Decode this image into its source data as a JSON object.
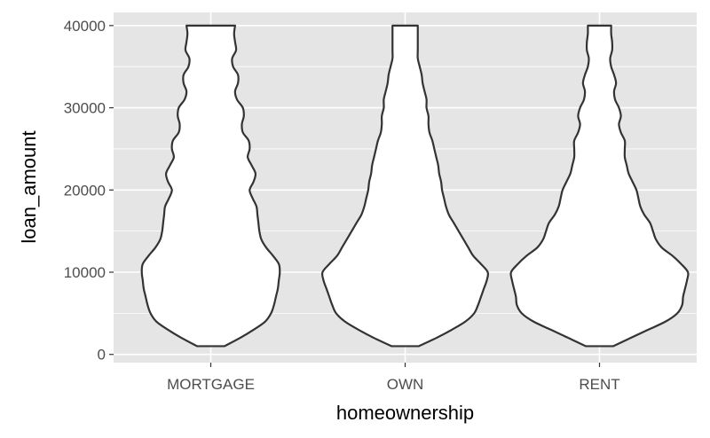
{
  "chart_data": {
    "type": "violin",
    "xlabel": "homeownership",
    "ylabel": "loan_amount",
    "categories": [
      "MORTGAGE",
      "OWN",
      "RENT"
    ],
    "ylim": [
      -1000,
      41600
    ],
    "yticks": [
      0,
      10000,
      20000,
      30000,
      40000
    ],
    "ytick_labels": [
      "0",
      "10000",
      "20000",
      "30000",
      "40000"
    ],
    "grid": true,
    "panel_background": "#e5e5e5",
    "grid_color": "#ffffff",
    "violin_fill": "#ffffff",
    "violin_stroke": "#333333",
    "series": [
      {
        "category": "MORTGAGE",
        "y": [
          1000,
          2000,
          3000,
          4000,
          5000,
          6000,
          7000,
          8000,
          9000,
          10000,
          11000,
          12000,
          13000,
          14000,
          15000,
          16000,
          17000,
          18000,
          19000,
          20000,
          21000,
          22000,
          23000,
          24000,
          25000,
          26000,
          27000,
          28000,
          29000,
          30000,
          31000,
          32000,
          33000,
          34000,
          35000,
          36000,
          37000,
          38000,
          39000,
          40000
        ],
        "half_width": [
          0.14,
          0.3,
          0.44,
          0.56,
          0.62,
          0.65,
          0.67,
          0.69,
          0.7,
          0.71,
          0.7,
          0.64,
          0.57,
          0.52,
          0.5,
          0.49,
          0.48,
          0.47,
          0.43,
          0.4,
          0.44,
          0.46,
          0.42,
          0.38,
          0.4,
          0.39,
          0.33,
          0.32,
          0.34,
          0.33,
          0.27,
          0.25,
          0.28,
          0.28,
          0.23,
          0.22,
          0.26,
          0.25,
          0.24,
          0.25
        ]
      },
      {
        "category": "OWN",
        "y": [
          1000,
          2000,
          3000,
          4000,
          5000,
          6000,
          7000,
          8000,
          9000,
          10000,
          11000,
          12000,
          13000,
          14000,
          15000,
          16000,
          17000,
          18000,
          19000,
          20000,
          21000,
          22000,
          23000,
          24000,
          25000,
          26000,
          27000,
          28000,
          29000,
          30000,
          31000,
          32000,
          33000,
          34000,
          35000,
          36000,
          37000,
          38000,
          39000,
          40000
        ],
        "half_width": [
          0.14,
          0.32,
          0.48,
          0.62,
          0.71,
          0.75,
          0.78,
          0.81,
          0.84,
          0.85,
          0.78,
          0.7,
          0.65,
          0.6,
          0.55,
          0.5,
          0.45,
          0.42,
          0.4,
          0.38,
          0.37,
          0.35,
          0.34,
          0.32,
          0.3,
          0.28,
          0.25,
          0.24,
          0.24,
          0.22,
          0.22,
          0.2,
          0.18,
          0.17,
          0.15,
          0.13,
          0.13,
          0.13,
          0.13,
          0.13
        ]
      },
      {
        "category": "RENT",
        "y": [
          1000,
          2000,
          3000,
          4000,
          5000,
          6000,
          7000,
          8000,
          9000,
          10000,
          11000,
          12000,
          13000,
          14000,
          15000,
          16000,
          17000,
          18000,
          19000,
          20000,
          21000,
          22000,
          23000,
          24000,
          25000,
          26000,
          27000,
          28000,
          29000,
          30000,
          31000,
          32000,
          33000,
          34000,
          35000,
          36000,
          37000,
          38000,
          39000,
          40000
        ],
        "half_width": [
          0.14,
          0.32,
          0.5,
          0.68,
          0.8,
          0.85,
          0.86,
          0.88,
          0.9,
          0.91,
          0.84,
          0.75,
          0.64,
          0.58,
          0.55,
          0.52,
          0.46,
          0.42,
          0.4,
          0.38,
          0.34,
          0.3,
          0.28,
          0.26,
          0.26,
          0.26,
          0.22,
          0.2,
          0.22,
          0.2,
          0.16,
          0.15,
          0.17,
          0.15,
          0.12,
          0.11,
          0.13,
          0.13,
          0.12,
          0.12
        ]
      }
    ]
  }
}
